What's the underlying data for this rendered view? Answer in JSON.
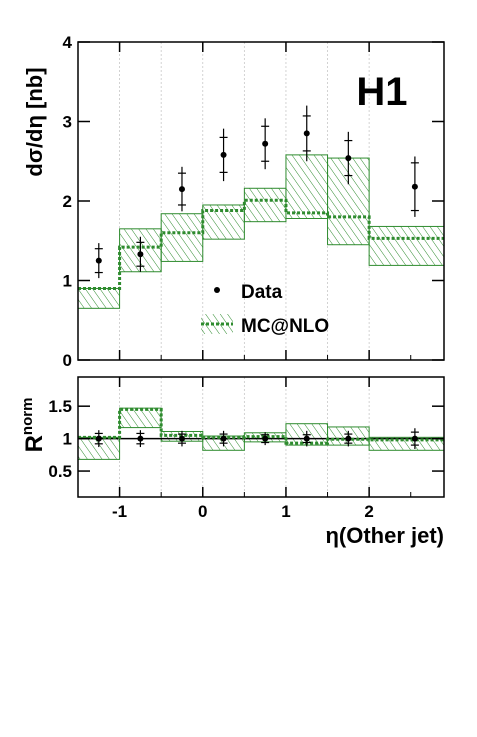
{
  "chart_data": [
    {
      "type": "histogram-with-points",
      "experiment_label": "H1",
      "ylabel": "dσ/dη [nb]",
      "xlabel": "η(Other jet)",
      "xlim": [
        -1.5,
        2.9
      ],
      "ylim": [
        0,
        4
      ],
      "x_ticks": [
        "-1",
        "0",
        "1",
        "2"
      ],
      "x_tick_values": [
        -1,
        0,
        1,
        2
      ],
      "y_ticks": [
        "0",
        "1",
        "2",
        "3",
        "4"
      ],
      "y_tick_values": [
        0,
        1,
        2,
        3,
        4
      ],
      "legend": {
        "placement": "middle",
        "entries": [
          "Data",
          "MC@NLO"
        ]
      },
      "bin_edges": [
        -1.5,
        -1.0,
        -0.5,
        0.0,
        0.5,
        1.0,
        1.5,
        2.0,
        2.9
      ],
      "series": [
        {
          "name": "Data",
          "kind": "points",
          "x": [
            -1.25,
            -0.75,
            -0.25,
            0.25,
            0.75,
            1.25,
            1.75,
            2.55
          ],
          "y": [
            1.25,
            1.33,
            2.15,
            2.58,
            2.72,
            2.85,
            2.54,
            2.18
          ],
          "stat_err": [
            0.15,
            0.15,
            0.2,
            0.22,
            0.22,
            0.22,
            0.22,
            0.3
          ],
          "total_err": [
            0.22,
            0.22,
            0.28,
            0.33,
            0.32,
            0.35,
            0.33,
            0.38
          ]
        },
        {
          "name": "MC@NLO",
          "kind": "histogram-band",
          "central": [
            0.9,
            1.42,
            1.6,
            1.88,
            2.01,
            1.85,
            1.8,
            1.53
          ],
          "band_low": [
            0.65,
            1.11,
            1.24,
            1.52,
            1.74,
            1.78,
            1.45,
            1.19
          ],
          "band_high": [
            0.9,
            1.65,
            1.84,
            1.95,
            2.16,
            2.58,
            2.54,
            1.68
          ]
        }
      ]
    },
    {
      "type": "ratio-histogram-with-points",
      "ylabel": "R",
      "ylabel_superscript": "norm",
      "xlim": [
        -1.5,
        2.9
      ],
      "ylim": [
        0.1,
        1.95
      ],
      "y_ticks": [
        "0.5",
        "1",
        "1.5"
      ],
      "y_tick_values": [
        0.5,
        1,
        1.5
      ],
      "reference_line": 1,
      "bin_edges": [
        -1.5,
        -1.0,
        -0.5,
        0.0,
        0.5,
        1.0,
        1.5,
        2.0,
        2.9
      ],
      "series": [
        {
          "name": "Data",
          "kind": "points",
          "x": [
            -1.25,
            -0.75,
            -0.25,
            0.25,
            0.75,
            1.25,
            1.75,
            2.55
          ],
          "y": [
            1.0,
            1.0,
            1.0,
            1.0,
            1.0,
            1.0,
            1.0,
            1.0
          ],
          "stat_err": [
            0.08,
            0.08,
            0.07,
            0.07,
            0.06,
            0.06,
            0.07,
            0.1
          ],
          "total_err": [
            0.13,
            0.13,
            0.12,
            0.12,
            0.1,
            0.12,
            0.12,
            0.16
          ]
        },
        {
          "name": "MC@NLO",
          "kind": "histogram-band",
          "central": [
            1.02,
            1.45,
            1.05,
            1.02,
            1.03,
            0.93,
            0.99,
            0.98
          ],
          "band_low": [
            0.68,
            1.17,
            0.96,
            0.82,
            0.95,
            0.9,
            0.9,
            0.82
          ],
          "band_high": [
            1.02,
            1.47,
            1.11,
            1.04,
            1.09,
            1.23,
            1.18,
            1.02
          ]
        }
      ]
    }
  ]
}
